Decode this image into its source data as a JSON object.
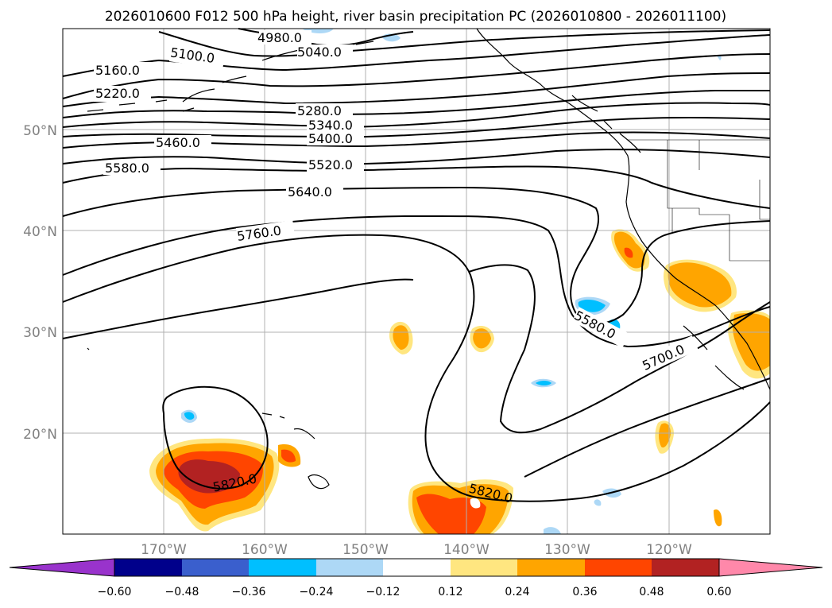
{
  "title": "2026010600 F012 500 hPa height, river basin precipitation PC (2026010800 - 2026011100)",
  "map": {
    "lat_labels": [
      {
        "lat": 50,
        "label": "50°N"
      },
      {
        "lat": 40,
        "label": "40°N"
      },
      {
        "lat": 30,
        "label": "30°N"
      },
      {
        "lat": 20,
        "label": "20°N"
      }
    ],
    "lon_labels": [
      {
        "lon": -170,
        "label": "170°W"
      },
      {
        "lon": -160,
        "label": "160°W"
      },
      {
        "lon": -150,
        "label": "150°W"
      },
      {
        "lon": -140,
        "label": "140°W"
      },
      {
        "lon": -130,
        "label": "130°W"
      },
      {
        "lon": -120,
        "label": "120°W"
      }
    ],
    "extent": {
      "lon_min": -180,
      "lon_max": -110,
      "lat_min": 10,
      "lat_max": 60
    },
    "contour_labels": [
      "4980.0",
      "5040.0",
      "5100.0",
      "5160.0",
      "5220.0",
      "5280.0",
      "5340.0",
      "5400.0",
      "5460.0",
      "5520.0",
      "5580.0",
      "5640.0",
      "5760.0",
      "5580.0",
      "5700.0",
      "5820.0",
      "5820.0"
    ]
  },
  "colorbar": {
    "ticks": [
      "−0.60",
      "−0.48",
      "−0.36",
      "−0.24",
      "−0.12",
      "0.12",
      "0.24",
      "0.36",
      "0.48",
      "0.60"
    ],
    "colors": [
      "#9933cc",
      "#00008b",
      "#3a5fcd",
      "#00bfff",
      "#add8f6",
      "#ffffff",
      "#ffe680",
      "#ffa500",
      "#ff4500",
      "#b22222",
      "#ff88aa"
    ]
  }
}
